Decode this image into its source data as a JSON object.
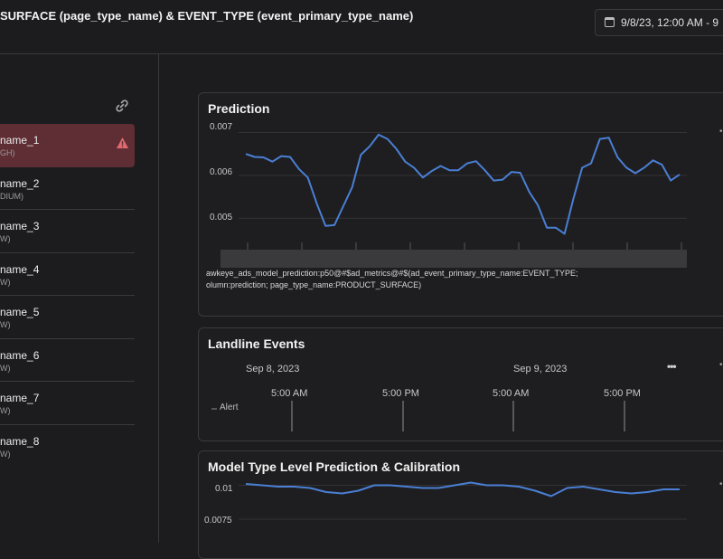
{
  "header": {
    "title": "SURFACE (page_type_name) & EVENT_TYPE (event_primary_type_name)",
    "date_range": "9/8/23, 12:00 AM - 9"
  },
  "list": {
    "link_icon": "link-icon",
    "items": [
      {
        "name": "name_1",
        "level": "GH)",
        "selected": true,
        "alert": true
      },
      {
        "name": "name_2",
        "level": "DIUM)"
      },
      {
        "name": "name_3",
        "level": "W)"
      },
      {
        "name": "name_4",
        "level": "W)"
      },
      {
        "name": "name_5",
        "level": "W)"
      },
      {
        "name": "name_6",
        "level": "W)"
      },
      {
        "name": "name_7",
        "level": "W)"
      },
      {
        "name": "name_8",
        "level": "W)"
      }
    ]
  },
  "prediction": {
    "title": "Prediction",
    "caption_line1": "awkeye_ads_model_prediction:p50@#$ad_metrics@#$(ad_event_primary_type_name:EVENT_TYPE;",
    "caption_line2": "olumn:prediction; page_type_name:PRODUCT_SURFACE)"
  },
  "landline": {
    "title": "Landline Events",
    "date1": "Sep 8, 2023",
    "date2": "Sep 9, 2023",
    "times": [
      "5:00 AM",
      "5:00 PM",
      "5:00 AM",
      "5:00 PM"
    ],
    "legend": "Alert"
  },
  "calibration": {
    "title": "Model Type Level Prediction & Calibration"
  },
  "colors": {
    "line": "#4a7fd4",
    "selected_bg": "#5e2e34",
    "alert": "#e06a70"
  },
  "chart_data": [
    {
      "type": "line",
      "title": "Prediction",
      "yticks": [
        "0.007",
        "0.006",
        "0.005"
      ],
      "ylim": [
        0.0045,
        0.0072
      ],
      "series": [
        {
          "values": [
            0.0065,
            0.00643,
            0.00642,
            0.00632,
            0.00645,
            0.00643,
            0.00615,
            0.00595,
            0.00535,
            0.00482,
            0.00484,
            0.00528,
            0.00572,
            0.00648,
            0.00668,
            0.00695,
            0.00685,
            0.00662,
            0.00632,
            0.00618,
            0.00595,
            0.0061,
            0.00622,
            0.00612,
            0.00612,
            0.00628,
            0.00633,
            0.00612,
            0.00588,
            0.0059,
            0.00608,
            0.00606,
            0.00562,
            0.0053,
            0.00478,
            0.00478,
            0.00464,
            0.00545,
            0.00618,
            0.00628,
            0.00685,
            0.00688,
            0.00642,
            0.00618,
            0.00605,
            0.00618,
            0.00635,
            0.00625,
            0.00588,
            0.00602
          ]
        }
      ]
    },
    {
      "type": "line",
      "title": "Model Type Level Prediction & Calibration",
      "yticks": [
        "0.01",
        "0.0075"
      ],
      "ylim": [
        0.0065,
        0.0105
      ],
      "series": [
        {
          "values": [
            0.0101,
            0.01,
            0.0099,
            0.0099,
            0.0098,
            0.0095,
            0.0094,
            0.0096,
            0.01,
            0.01,
            0.0099,
            0.0098,
            0.0098,
            0.01,
            0.0102,
            0.01,
            0.01,
            0.0099,
            0.0096,
            0.0092,
            0.0098,
            0.0099,
            0.0097,
            0.0095,
            0.0094,
            0.0095,
            0.0097,
            0.0097
          ]
        }
      ]
    }
  ]
}
